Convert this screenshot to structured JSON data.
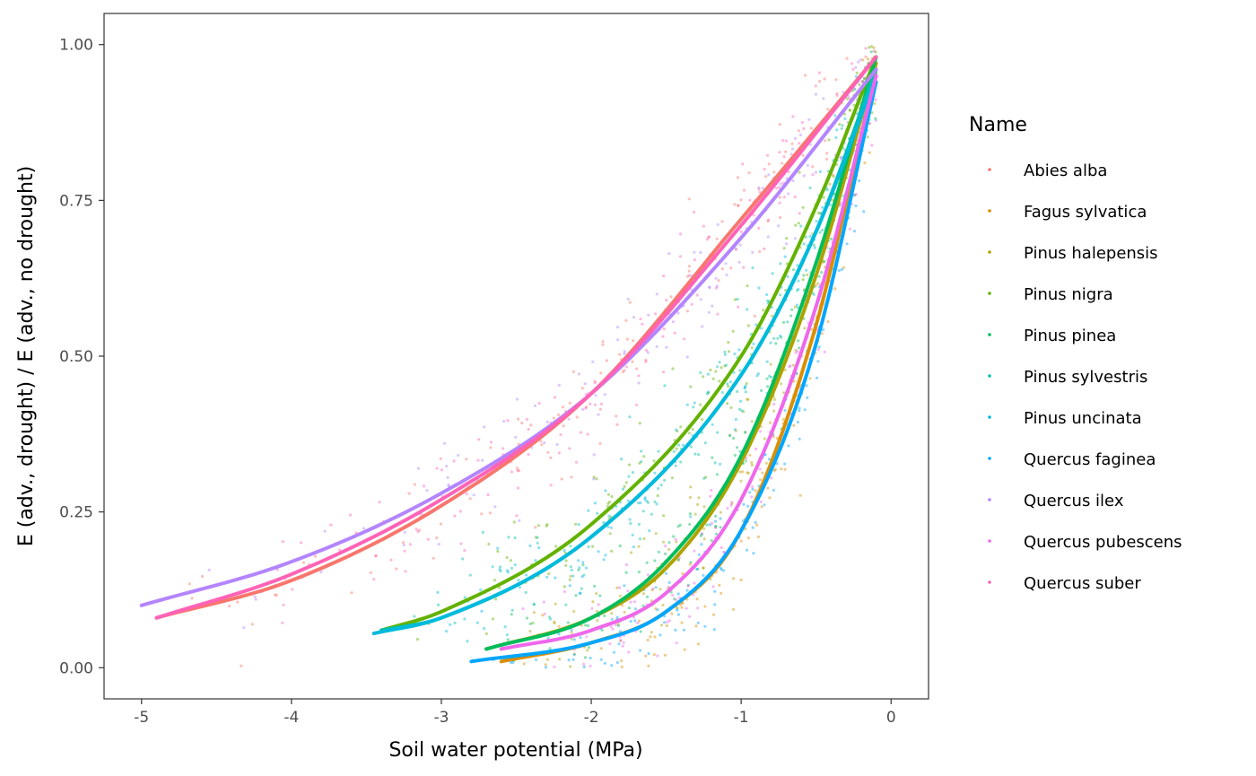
{
  "chart_data": {
    "type": "scatter",
    "xlabel": "Soil water potential (MPa)",
    "ylabel": "E (adv., drought) / E (adv., no drought)",
    "xlim": [
      -5.25,
      0.25
    ],
    "ylim": [
      -0.05,
      1.05
    ],
    "x_ticks": [
      {
        "value": -5,
        "label": "-5"
      },
      {
        "value": -4,
        "label": "-4"
      },
      {
        "value": -3,
        "label": "-3"
      },
      {
        "value": -2,
        "label": "-2"
      },
      {
        "value": -1,
        "label": "-1"
      },
      {
        "value": 0,
        "label": "0"
      }
    ],
    "y_ticks": [
      {
        "value": 0.0,
        "label": "0.00"
      },
      {
        "value": 0.25,
        "label": "0.25"
      },
      {
        "value": 0.5,
        "label": "0.50"
      },
      {
        "value": 0.75,
        "label": "0.75"
      },
      {
        "value": 1.0,
        "label": "1.00"
      }
    ],
    "grid": false,
    "legend": {
      "title": "Name",
      "position": "right"
    },
    "series": [
      {
        "name": "Abies alba",
        "color": "#F8766D",
        "fit_x": [
          -4.9,
          -4.0,
          -3.0,
          -2.0,
          -1.0,
          -0.1
        ],
        "fit_y": [
          0.08,
          0.14,
          0.26,
          0.44,
          0.72,
          0.98
        ]
      },
      {
        "name": "Fagus sylvatica",
        "color": "#DB8E00",
        "fit_x": [
          -2.6,
          -2.0,
          -1.5,
          -1.0,
          -0.5,
          -0.1
        ],
        "fit_y": [
          0.01,
          0.04,
          0.09,
          0.22,
          0.55,
          0.96
        ]
      },
      {
        "name": "Pinus halepensis",
        "color": "#AEA200",
        "fit_x": [
          -2.7,
          -2.0,
          -1.5,
          -1.0,
          -0.5,
          -0.1
        ],
        "fit_y": [
          0.03,
          0.08,
          0.16,
          0.33,
          0.63,
          0.97
        ]
      },
      {
        "name": "Pinus nigra",
        "color": "#64B200",
        "fit_x": [
          -3.4,
          -3.0,
          -2.0,
          -1.0,
          -0.5,
          -0.1
        ],
        "fit_y": [
          0.06,
          0.09,
          0.23,
          0.5,
          0.74,
          0.98
        ]
      },
      {
        "name": "Pinus pinea",
        "color": "#00BD5C",
        "fit_x": [
          -2.7,
          -2.0,
          -1.5,
          -1.0,
          -0.5,
          -0.1
        ],
        "fit_y": [
          0.03,
          0.08,
          0.17,
          0.34,
          0.65,
          0.98
        ]
      },
      {
        "name": "Pinus sylvestris",
        "color": "#00C1A7",
        "fit_x": [
          -3.4,
          -3.0,
          -2.0,
          -1.0,
          -0.5,
          -0.1
        ],
        "fit_y": [
          0.06,
          0.08,
          0.21,
          0.47,
          0.7,
          0.96
        ]
      },
      {
        "name": "Pinus uncinata",
        "color": "#00BADE",
        "fit_x": [
          -3.45,
          -3.0,
          -2.0,
          -1.0,
          -0.5,
          -0.1
        ],
        "fit_y": [
          0.055,
          0.08,
          0.21,
          0.47,
          0.7,
          0.95
        ]
      },
      {
        "name": "Quercus faginea",
        "color": "#00A6FF",
        "fit_x": [
          -2.8,
          -2.0,
          -1.5,
          -1.0,
          -0.5,
          -0.1
        ],
        "fit_y": [
          0.01,
          0.04,
          0.09,
          0.22,
          0.52,
          0.94
        ]
      },
      {
        "name": "Quercus ilex",
        "color": "#B385FF",
        "fit_x": [
          -5.0,
          -4.0,
          -3.0,
          -2.0,
          -1.0,
          -0.1
        ],
        "fit_y": [
          0.1,
          0.17,
          0.28,
          0.44,
          0.69,
          0.96
        ]
      },
      {
        "name": "Quercus pubescens",
        "color": "#EF67EB",
        "fit_x": [
          -2.6,
          -2.0,
          -1.5,
          -1.0,
          -0.5,
          -0.1
        ],
        "fit_y": [
          0.03,
          0.06,
          0.12,
          0.27,
          0.58,
          0.95
        ]
      },
      {
        "name": "Quercus suber",
        "color": "#FF63B6",
        "fit_x": [
          -4.9,
          -4.0,
          -3.0,
          -2.0,
          -1.0,
          -0.1
        ],
        "fit_y": [
          0.08,
          0.15,
          0.27,
          0.44,
          0.71,
          0.98
        ]
      }
    ]
  }
}
